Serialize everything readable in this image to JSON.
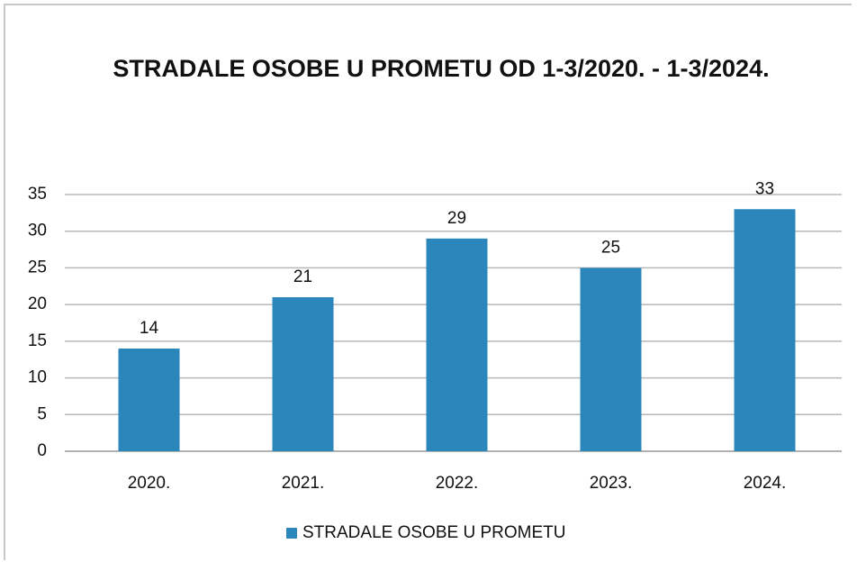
{
  "chart_data": {
    "type": "bar",
    "title": "STRADALE OSOBE U PROMETU OD 1-3/2020. - 1-3/2024.",
    "categories": [
      "2020.",
      "2021.",
      "2022.",
      "2023.",
      "2024."
    ],
    "series": [
      {
        "name": "STRADALE OSOBE U PROMETU",
        "color": "#2b86bb",
        "values": [
          14,
          21,
          29,
          25,
          33
        ]
      }
    ],
    "ylim": [
      0,
      35
    ],
    "yticks": [
      0,
      5,
      10,
      15,
      20,
      25,
      30,
      35
    ],
    "grid": true,
    "legend": "bottom"
  }
}
